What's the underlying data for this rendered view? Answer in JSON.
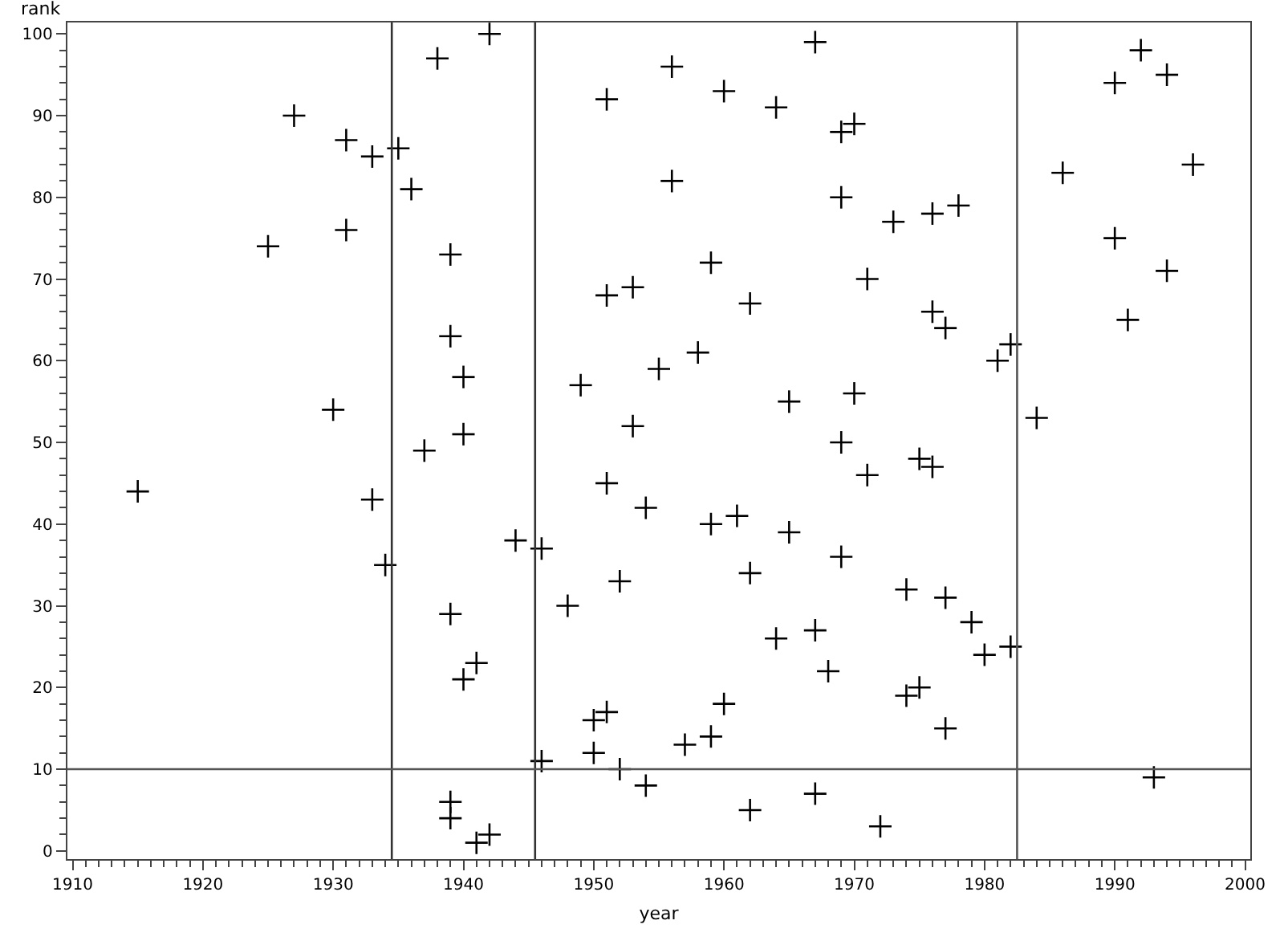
{
  "chart_data": {
    "type": "scatter",
    "xlabel": "year",
    "ylabel": "rank",
    "x": [
      1941,
      1942,
      1972,
      1939,
      1962,
      1939,
      1967,
      1954,
      1993,
      1952,
      1946,
      1950,
      1957,
      1959,
      1977,
      1950,
      1951,
      1960,
      1974,
      1975,
      1940,
      1968,
      1941,
      1980,
      1982,
      1964,
      1967,
      1979,
      1939,
      1948,
      1977,
      1974,
      1952,
      1962,
      1934,
      1969,
      1946,
      1944,
      1965,
      1959,
      1961,
      1954,
      1933,
      1915,
      1951,
      1971,
      1976,
      1975,
      1937,
      1969,
      1940,
      1953,
      1984,
      1930,
      1965,
      1970,
      1949,
      1940,
      1955,
      1981,
      1958,
      1982,
      1939,
      1977,
      1991,
      1976,
      1962,
      1951,
      1953,
      1971,
      1994,
      1959,
      1939,
      1925,
      1990,
      1931,
      1973,
      1976,
      1978,
      1969,
      1936,
      1956,
      1986,
      1996,
      1933,
      1935,
      1931,
      1969,
      1970,
      1927,
      1964,
      1951,
      1960,
      1990,
      1994,
      1956,
      1938,
      1992,
      1967,
      1942
    ],
    "series": [
      {
        "color": "#000000",
        "values": [
          1,
          2,
          3,
          4,
          5,
          6,
          7,
          8,
          9,
          10,
          11,
          12,
          13,
          14,
          15,
          16,
          17,
          18,
          19,
          20,
          21,
          22,
          23,
          24,
          25,
          26,
          27,
          28,
          29,
          30,
          31,
          32,
          33,
          34,
          35,
          36,
          37,
          38,
          39,
          40,
          41,
          42,
          43,
          44,
          45,
          46,
          47,
          48,
          49,
          50,
          51,
          52,
          53,
          54,
          55,
          56,
          57,
          58,
          59,
          60,
          61,
          62,
          63,
          64,
          65,
          66,
          67,
          68,
          69,
          70,
          71,
          72,
          73,
          74,
          75,
          76,
          77,
          78,
          79,
          80,
          81,
          82,
          83,
          84,
          85,
          86,
          87,
          88,
          89,
          90,
          91,
          92,
          93,
          94,
          95,
          96,
          97,
          98,
          99,
          100
        ]
      }
    ],
    "xlim": [
      1909.6,
      2000.4
    ],
    "xticks": [
      1910,
      1920,
      1930,
      1940,
      1950,
      1960,
      1970,
      1980,
      1990,
      2000
    ],
    "ylim": [
      -1,
      101.4
    ],
    "yticks": [
      0,
      10,
      20,
      30,
      40,
      50,
      60,
      70,
      80,
      90,
      100
    ],
    "ref_lines": [
      {
        "axis": "x",
        "value": 1934.5,
        "color": "#333333"
      },
      {
        "axis": "x",
        "value": 1945.5,
        "color": "#333333"
      },
      {
        "axis": "x",
        "value": 1982.5,
        "color": "#555555"
      },
      {
        "axis": "y",
        "value": 10,
        "color": "#555555"
      }
    ],
    "marker": "cross"
  }
}
